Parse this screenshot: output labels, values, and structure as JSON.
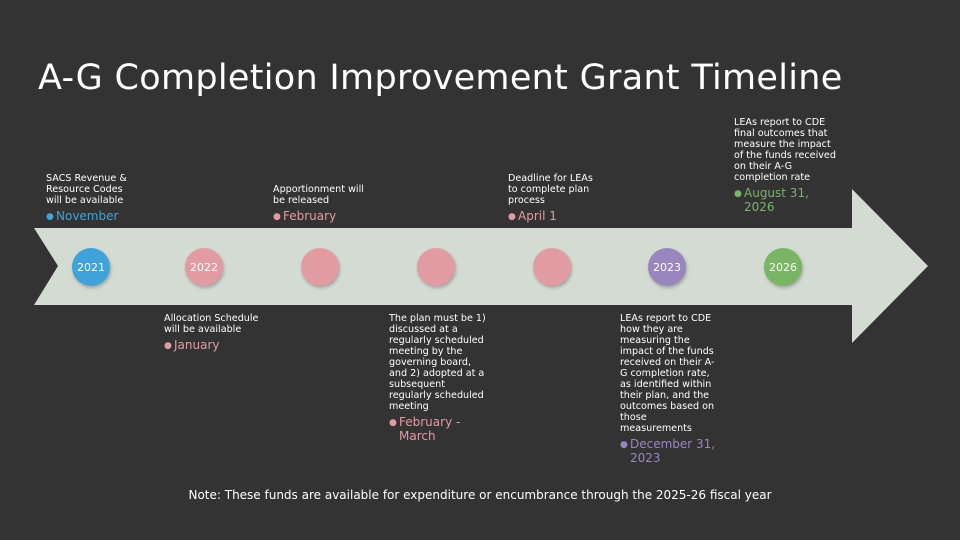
{
  "title": "A-G Completion Improvement Grant Timeline",
  "colors": {
    "background": "#333333",
    "arrow": "#d3dbd3",
    "blue": "#3fa3d9",
    "pink": "#e29ba3",
    "purple": "#9a86bf",
    "green": "#79b565"
  },
  "nodes": [
    {
      "label": "2021",
      "color": "blue"
    },
    {
      "label": "2022",
      "color": "pink"
    },
    {
      "label": "",
      "color": "pink"
    },
    {
      "label": "",
      "color": "pink"
    },
    {
      "label": "",
      "color": "pink"
    },
    {
      "label": "2023",
      "color": "purple"
    },
    {
      "label": "2026",
      "color": "green"
    }
  ],
  "events": [
    {
      "description": "SACS Revenue & Resource Codes will be available",
      "date": "November",
      "color": "blue"
    },
    {
      "description": "Allocation Schedule will be available",
      "date": "January",
      "color": "pink"
    },
    {
      "description": "Apportionment will be released",
      "date": "February",
      "color": "pink"
    },
    {
      "description": "The plan must be 1) discussed at a regularly scheduled meeting by the governing board, and 2) adopted at a subsequent regularly scheduled meeting",
      "date": "February - March",
      "color": "pink"
    },
    {
      "description": "Deadline for LEAs to complete plan process",
      "date": "April 1",
      "color": "pink"
    },
    {
      "description": "LEAs report to CDE how they are measuring the impact of the funds received on their A-G completion rate, as identified within their plan, and the outcomes based on those measurements",
      "date": "December 31, 2023",
      "color": "purple"
    },
    {
      "description": "LEAs report to CDE final outcomes that measure the impact of the funds received on their A-G completion rate",
      "date": "August 31, 2026",
      "color": "green"
    }
  ],
  "note": "Note: These funds are available for expenditure or encumbrance through the 2025-26 fiscal year"
}
